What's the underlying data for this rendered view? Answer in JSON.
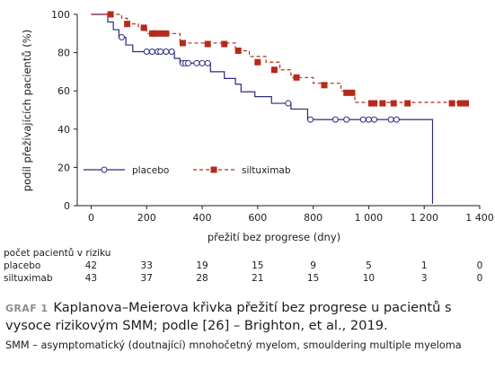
{
  "chart_data": {
    "type": "line",
    "subtype": "kaplan-meier",
    "xlabel": "přežití bez progrese (dny)",
    "ylabel": "podíl přežívajících pacientů (%)",
    "xlim": [
      -50,
      1400
    ],
    "ylim": [
      0,
      100
    ],
    "x_ticks": [
      0,
      200,
      400,
      600,
      800,
      1000,
      1200,
      1400
    ],
    "y_ticks": [
      0,
      20,
      40,
      60,
      80,
      100
    ],
    "grid": false,
    "legend_position": "bottom-left",
    "series": [
      {
        "name": "placebo",
        "color": "#2b2b7e",
        "marker": "open-circle",
        "line": "solid",
        "steps": [
          [
            0,
            100
          ],
          [
            30,
            100
          ],
          [
            60,
            96
          ],
          [
            80,
            92
          ],
          [
            100,
            88
          ],
          [
            125,
            84
          ],
          [
            150,
            80.5
          ],
          [
            280,
            80.5
          ],
          [
            300,
            77
          ],
          [
            320,
            74.5
          ],
          [
            400,
            74.5
          ],
          [
            430,
            70
          ],
          [
            480,
            66.5
          ],
          [
            520,
            63.5
          ],
          [
            540,
            59.5
          ],
          [
            590,
            57
          ],
          [
            650,
            53.5
          ],
          [
            720,
            50.5
          ],
          [
            780,
            45
          ],
          [
            1230,
            45
          ],
          [
            1230,
            1
          ]
        ],
        "censored": [
          [
            110,
            88
          ],
          [
            200,
            80.5
          ],
          [
            220,
            80.5
          ],
          [
            240,
            80.5
          ],
          [
            250,
            80.5
          ],
          [
            270,
            80.5
          ],
          [
            290,
            80.5
          ],
          [
            330,
            74.5
          ],
          [
            340,
            74.5
          ],
          [
            350,
            74.5
          ],
          [
            380,
            74.5
          ],
          [
            400,
            74.5
          ],
          [
            420,
            74.5
          ],
          [
            710,
            53.5
          ],
          [
            790,
            45
          ],
          [
            880,
            45
          ],
          [
            920,
            45
          ],
          [
            980,
            45
          ],
          [
            1000,
            45
          ],
          [
            1020,
            45
          ],
          [
            1080,
            45
          ],
          [
            1100,
            45
          ]
        ]
      },
      {
        "name": "siltuximab",
        "color": "#b52a1c",
        "marker": "filled-square",
        "line": "dashed",
        "steps": [
          [
            0,
            100
          ],
          [
            70,
            100
          ],
          [
            110,
            98
          ],
          [
            130,
            95
          ],
          [
            170,
            93
          ],
          [
            200,
            90
          ],
          [
            310,
            90
          ],
          [
            320,
            85
          ],
          [
            460,
            85
          ],
          [
            520,
            81
          ],
          [
            570,
            78
          ],
          [
            630,
            75
          ],
          [
            680,
            71
          ],
          [
            720,
            67
          ],
          [
            770,
            67
          ],
          [
            800,
            64
          ],
          [
            900,
            60
          ],
          [
            920,
            59
          ],
          [
            950,
            54
          ],
          [
            1350,
            54
          ]
        ],
        "censored": [
          [
            70,
            100
          ],
          [
            130,
            95
          ],
          [
            190,
            93
          ],
          [
            220,
            90
          ],
          [
            230,
            90
          ],
          [
            250,
            90
          ],
          [
            270,
            90
          ],
          [
            330,
            85
          ],
          [
            420,
            84.5
          ],
          [
            480,
            84.5
          ],
          [
            530,
            81
          ],
          [
            600,
            75
          ],
          [
            660,
            71
          ],
          [
            740,
            67
          ],
          [
            840,
            63
          ],
          [
            920,
            59
          ],
          [
            940,
            59
          ],
          [
            1010,
            53.5
          ],
          [
            1020,
            53.5
          ],
          [
            1050,
            53.5
          ],
          [
            1090,
            53.5
          ],
          [
            1140,
            53.5
          ],
          [
            1300,
            53.5
          ],
          [
            1330,
            53.5
          ],
          [
            1350,
            53.5
          ]
        ]
      }
    ],
    "risk_table": {
      "title": "počet pacientů v riziku",
      "timepoints": [
        0,
        200,
        400,
        600,
        800,
        1000,
        1200,
        1400
      ],
      "rows": [
        {
          "label": "placebo",
          "values": [
            "42",
            "33",
            "19",
            "15",
            "9",
            "5",
            "1",
            "0"
          ]
        },
        {
          "label": "siltuximab",
          "values": [
            "43",
            "37",
            "28",
            "21",
            "15",
            "10",
            "3",
            "0"
          ]
        }
      ]
    }
  },
  "caption": {
    "number": "GRAF 1",
    "text": "Kaplanova–Meierova křivka přežití bez progrese u pacientů s vysoce rizikovým SMM; podle [26] – Brighton, et al., 2019."
  },
  "footnote": "SMM – asymptomatický (doutnající) mnohočetný myelom, smouldering multiple myeloma"
}
